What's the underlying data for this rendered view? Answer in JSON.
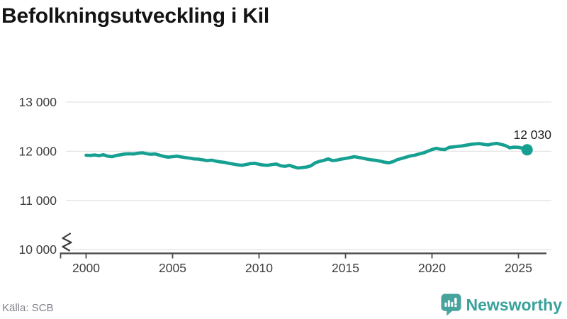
{
  "title": "Befolkningsutveckling i Kil",
  "source": "Källa: SCB",
  "branding": {
    "name": "Newsworthy",
    "icon": "newsworthy-speech-bubble-bar-chart-icon",
    "icon_color": "#48a39d",
    "text_color": "#38a29a"
  },
  "chart_data": {
    "type": "line",
    "title": "Befolkningsutveckling i Kil",
    "xlabel": "",
    "ylabel": "",
    "xlim": [
      1998.8,
      2026.9
    ],
    "ylim": [
      10000,
      13000
    ],
    "axis_break_at_bottom": true,
    "grid": "horizontal",
    "legend_position": "none",
    "x_ticks": [
      2000,
      2005,
      2010,
      2015,
      2020,
      2025
    ],
    "x_tick_labels": [
      "2000",
      "2005",
      "2010",
      "2015",
      "2020",
      "2025"
    ],
    "y_ticks": [
      13000,
      12000,
      11000,
      10000
    ],
    "y_tick_labels": [
      "13 000",
      "12 000",
      "11 000",
      "10 000"
    ],
    "line_color": "#16a091",
    "end_label": "12 030",
    "end_value": 12030,
    "series": [
      {
        "color": "#16a091",
        "points": [
          [
            2000.0,
            11920
          ],
          [
            2000.25,
            11915
          ],
          [
            2000.5,
            11925
          ],
          [
            2000.75,
            11910
          ],
          [
            2001.0,
            11930
          ],
          [
            2001.25,
            11900
          ],
          [
            2001.5,
            11890
          ],
          [
            2001.75,
            11915
          ],
          [
            2002.0,
            11930
          ],
          [
            2002.25,
            11945
          ],
          [
            2002.5,
            11950
          ],
          [
            2002.75,
            11945
          ],
          [
            2003.0,
            11960
          ],
          [
            2003.25,
            11970
          ],
          [
            2003.5,
            11950
          ],
          [
            2003.75,
            11940
          ],
          [
            2004.0,
            11945
          ],
          [
            2004.25,
            11920
          ],
          [
            2004.5,
            11895
          ],
          [
            2004.75,
            11880
          ],
          [
            2005.0,
            11890
          ],
          [
            2005.25,
            11900
          ],
          [
            2005.5,
            11885
          ],
          [
            2005.75,
            11870
          ],
          [
            2006.0,
            11860
          ],
          [
            2006.25,
            11845
          ],
          [
            2006.5,
            11840
          ],
          [
            2006.75,
            11825
          ],
          [
            2007.0,
            11810
          ],
          [
            2007.25,
            11820
          ],
          [
            2007.5,
            11800
          ],
          [
            2007.75,
            11785
          ],
          [
            2008.0,
            11775
          ],
          [
            2008.25,
            11755
          ],
          [
            2008.5,
            11740
          ],
          [
            2008.75,
            11725
          ],
          [
            2009.0,
            11715
          ],
          [
            2009.25,
            11730
          ],
          [
            2009.5,
            11750
          ],
          [
            2009.75,
            11755
          ],
          [
            2010.0,
            11735
          ],
          [
            2010.25,
            11720
          ],
          [
            2010.5,
            11715
          ],
          [
            2010.75,
            11730
          ],
          [
            2011.0,
            11740
          ],
          [
            2011.25,
            11705
          ],
          [
            2011.5,
            11695
          ],
          [
            2011.75,
            11715
          ],
          [
            2012.0,
            11685
          ],
          [
            2012.25,
            11660
          ],
          [
            2012.5,
            11670
          ],
          [
            2012.75,
            11680
          ],
          [
            2013.0,
            11705
          ],
          [
            2013.25,
            11765
          ],
          [
            2013.5,
            11795
          ],
          [
            2013.75,
            11815
          ],
          [
            2014.0,
            11845
          ],
          [
            2014.25,
            11810
          ],
          [
            2014.5,
            11820
          ],
          [
            2014.75,
            11840
          ],
          [
            2015.0,
            11855
          ],
          [
            2015.25,
            11870
          ],
          [
            2015.5,
            11890
          ],
          [
            2015.75,
            11875
          ],
          [
            2016.0,
            11860
          ],
          [
            2016.25,
            11840
          ],
          [
            2016.5,
            11825
          ],
          [
            2016.75,
            11815
          ],
          [
            2017.0,
            11800
          ],
          [
            2017.25,
            11780
          ],
          [
            2017.5,
            11765
          ],
          [
            2017.75,
            11790
          ],
          [
            2018.0,
            11830
          ],
          [
            2018.25,
            11855
          ],
          [
            2018.5,
            11880
          ],
          [
            2018.75,
            11905
          ],
          [
            2019.0,
            11920
          ],
          [
            2019.25,
            11945
          ],
          [
            2019.5,
            11965
          ],
          [
            2019.75,
            12000
          ],
          [
            2020.0,
            12035
          ],
          [
            2020.25,
            12060
          ],
          [
            2020.5,
            12040
          ],
          [
            2020.75,
            12035
          ],
          [
            2021.0,
            12080
          ],
          [
            2021.25,
            12090
          ],
          [
            2021.5,
            12100
          ],
          [
            2021.75,
            12110
          ],
          [
            2022.0,
            12125
          ],
          [
            2022.25,
            12140
          ],
          [
            2022.5,
            12150
          ],
          [
            2022.75,
            12155
          ],
          [
            2023.0,
            12140
          ],
          [
            2023.25,
            12130
          ],
          [
            2023.5,
            12150
          ],
          [
            2023.75,
            12160
          ],
          [
            2024.0,
            12140
          ],
          [
            2024.25,
            12115
          ],
          [
            2024.5,
            12070
          ],
          [
            2024.75,
            12085
          ],
          [
            2025.0,
            12080
          ],
          [
            2025.25,
            12060
          ],
          [
            2025.5,
            12030
          ]
        ]
      }
    ]
  }
}
